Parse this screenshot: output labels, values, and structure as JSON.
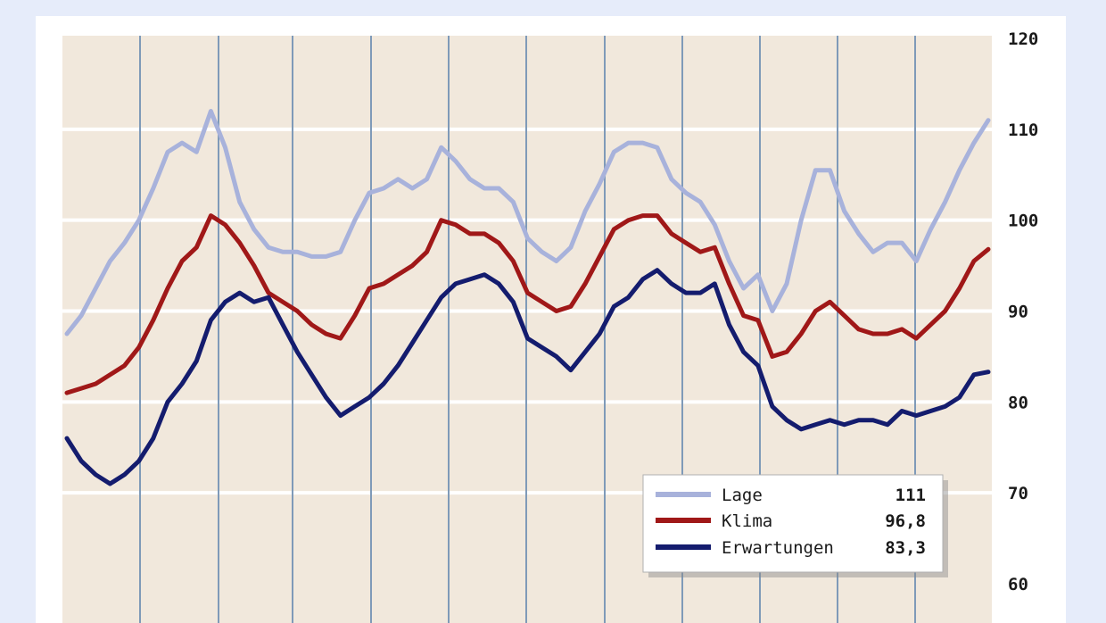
{
  "chart_data": {
    "type": "line",
    "title": "",
    "xlabel": "",
    "ylabel": "",
    "ylim": [
      60,
      120
    ],
    "y_ticks": [
      "60",
      "70",
      "80",
      "90",
      "100",
      "110",
      "120"
    ],
    "y_axis_side": "right",
    "grid": true,
    "legend_position": "bottom-right",
    "background_color": "#f1e8dc",
    "x": [
      0,
      2,
      4,
      6,
      8,
      10,
      12,
      14,
      16,
      18,
      20,
      22,
      24,
      26,
      28,
      30,
      32,
      34,
      36,
      38,
      40,
      42,
      44,
      46,
      48,
      50,
      52,
      54,
      56,
      58,
      60,
      62,
      64,
      66,
      68,
      70,
      72,
      74,
      76,
      78,
      80,
      82,
      84,
      86,
      88,
      90,
      92,
      94,
      96,
      98,
      100,
      102,
      104,
      106,
      108,
      110,
      112,
      114,
      116,
      118,
      120,
      122,
      124,
      126,
      128
    ],
    "series": [
      {
        "name": "Lage",
        "color": "#a8b2db",
        "legend_value": "111",
        "values": [
          87.5,
          89.5,
          92.5,
          95.5,
          97.5,
          100,
          103.5,
          107.5,
          108.5,
          107.5,
          112,
          108,
          102,
          99,
          97,
          96.5,
          96.5,
          96,
          96,
          96.5,
          100,
          103,
          103.5,
          104.5,
          103.5,
          104.5,
          108,
          106.5,
          104.5,
          103.5,
          103.5,
          102,
          98,
          96.5,
          95.5,
          97,
          101,
          104,
          107.5,
          108.5,
          108.5,
          108,
          104.5,
          103,
          102,
          99.5,
          95.5,
          92.5,
          94,
          90,
          93,
          100,
          105.5,
          105.5,
          101,
          98.5,
          96.5,
          97.5,
          97.5,
          95.5,
          99,
          102,
          105.5,
          108.5,
          111
        ]
      },
      {
        "name": "Klima",
        "color": "#a01818",
        "legend_value": "96,8",
        "values": [
          81,
          81.5,
          82,
          83,
          84,
          86,
          89,
          92.5,
          95.5,
          97,
          100.5,
          99.5,
          97.5,
          95,
          92,
          91,
          90,
          88.5,
          87.5,
          87,
          89.5,
          92.5,
          93,
          94,
          95,
          96.5,
          100,
          99.5,
          98.5,
          98.5,
          97.5,
          95.5,
          92,
          91,
          90,
          90.5,
          93,
          96,
          99,
          100,
          100.5,
          100.5,
          98.5,
          97.5,
          96.5,
          97,
          93,
          89.5,
          89,
          85,
          85.5,
          87.5,
          90,
          91,
          89.5,
          88,
          87.5,
          87.5,
          88,
          87,
          88.5,
          90,
          92.5,
          95.5,
          96.8
        ]
      },
      {
        "name": "Erwartungen",
        "color": "#141c6e",
        "legend_value": "83,3",
        "values": [
          76,
          73.5,
          72,
          71,
          72,
          73.5,
          76,
          80,
          82,
          84.5,
          89,
          91,
          92,
          91,
          91.5,
          88.5,
          85.5,
          83,
          80.5,
          78.5,
          79.5,
          80.5,
          82,
          84,
          86.5,
          89,
          91.5,
          93,
          93.5,
          94,
          93,
          91,
          87,
          86,
          85,
          83.5,
          85.5,
          87.5,
          90.5,
          91.5,
          93.5,
          94.5,
          93,
          92,
          92,
          93,
          88.5,
          85.5,
          84,
          79.5,
          78,
          77,
          77.5,
          78,
          77.5,
          78,
          78,
          77.5,
          79,
          78.5,
          79,
          79.5,
          80.5,
          83,
          83.3
        ]
      }
    ]
  }
}
